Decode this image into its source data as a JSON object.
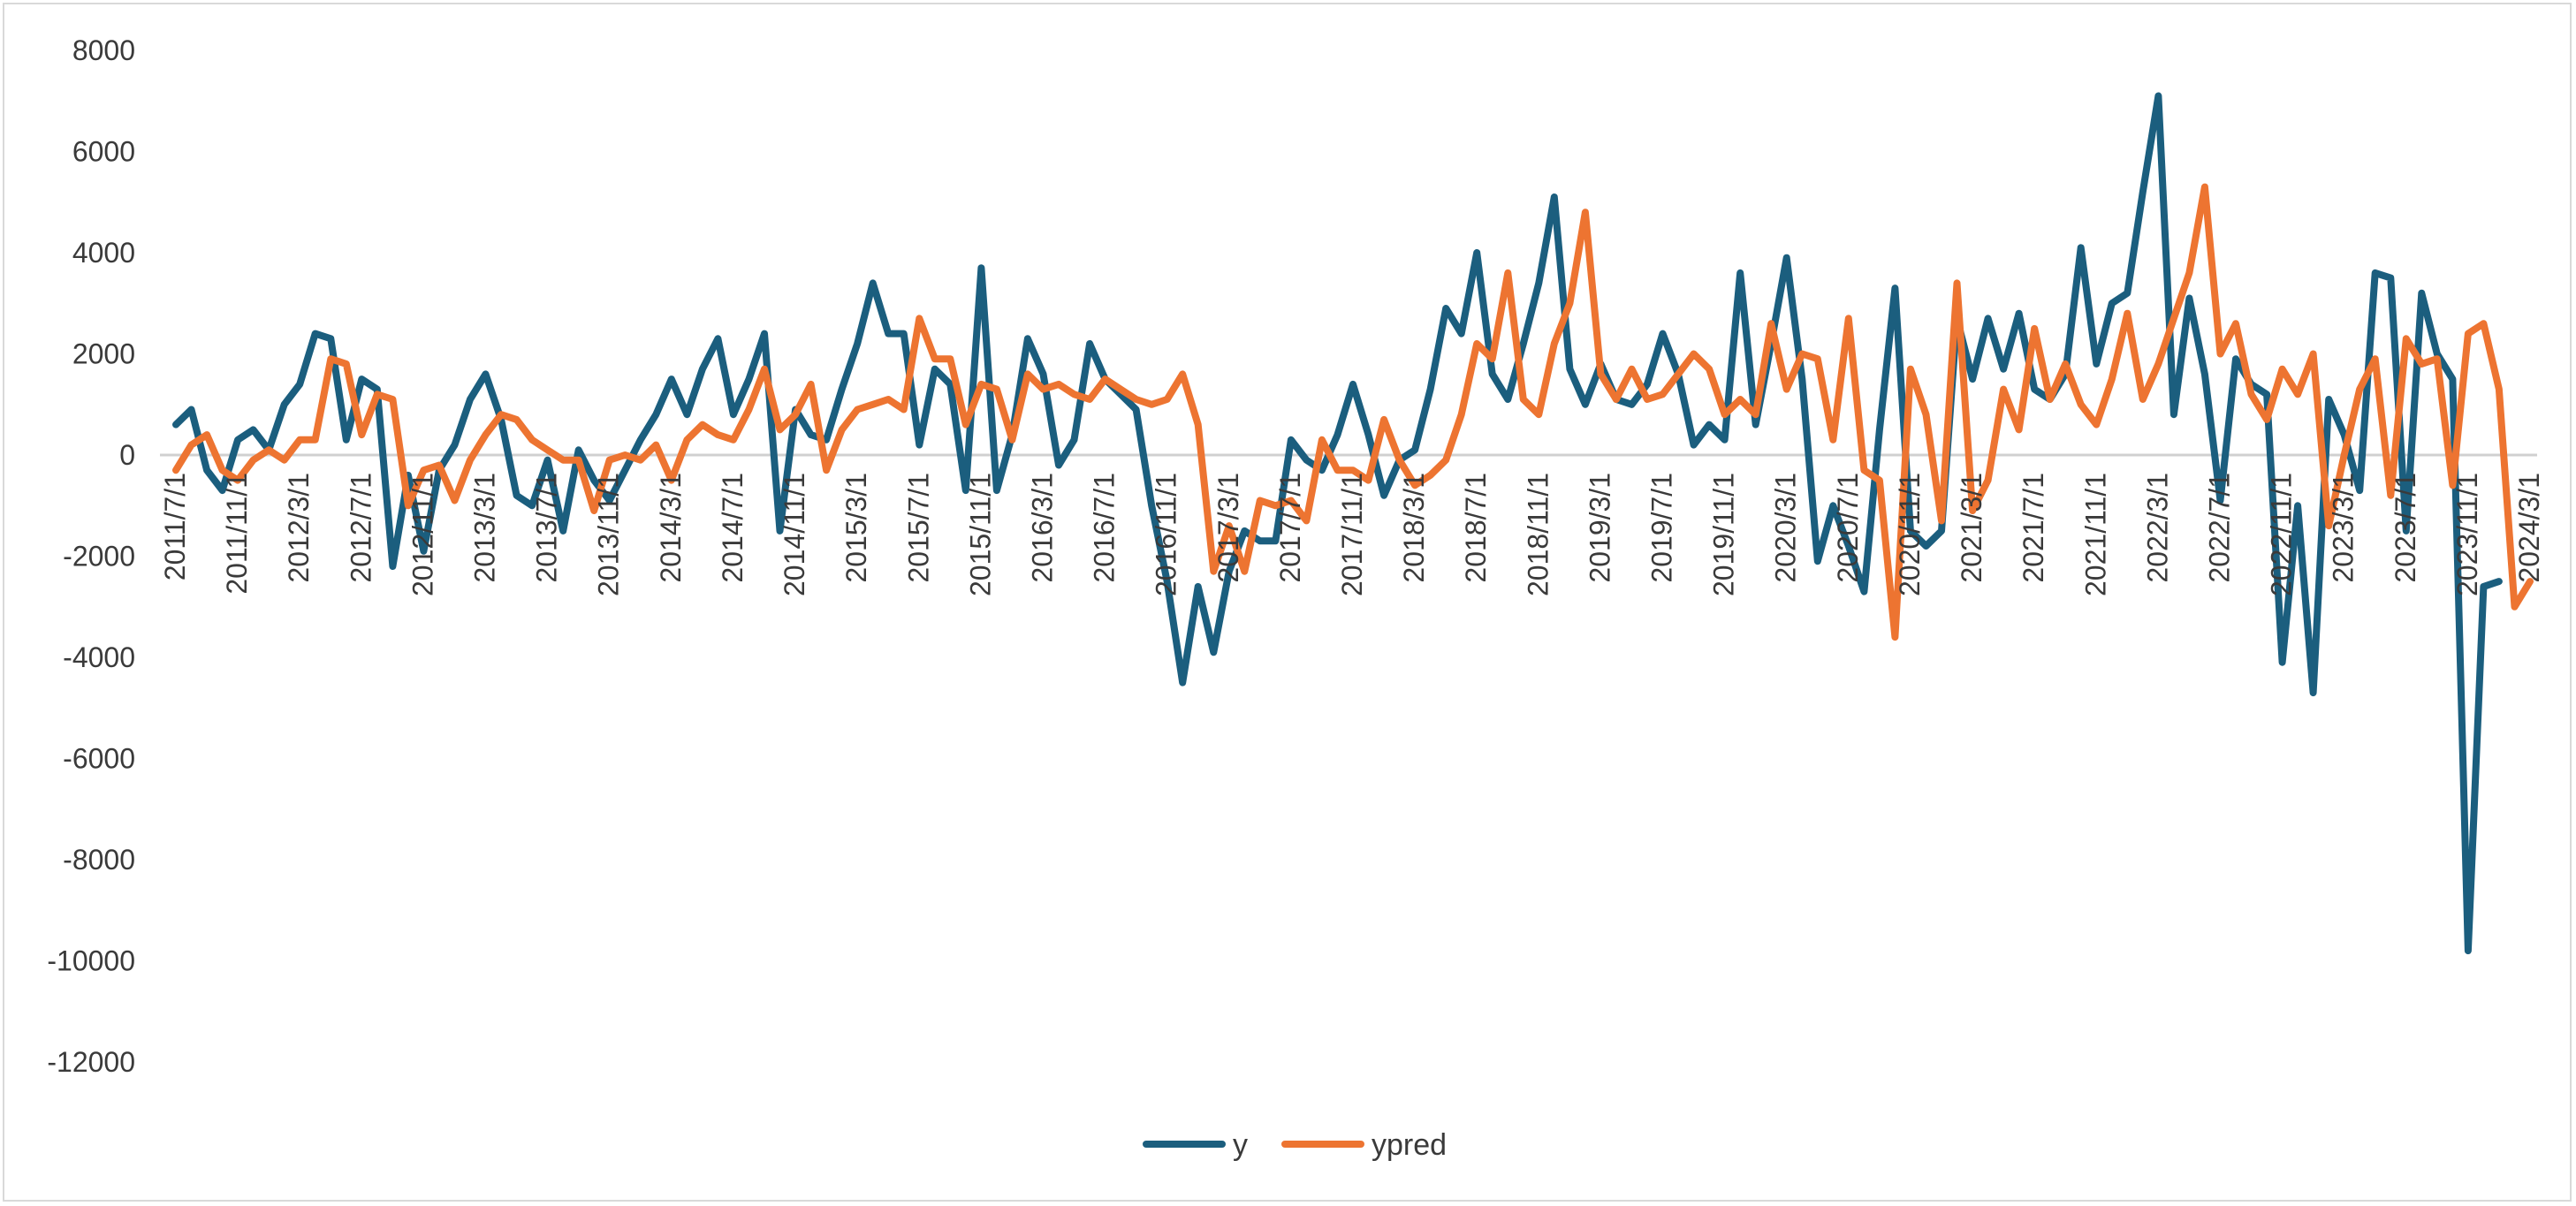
{
  "chart_data": {
    "type": "line",
    "title": "",
    "xlabel": "",
    "ylabel": "",
    "ylim": [
      -12000,
      8000
    ],
    "yticks": [
      8000,
      6000,
      4000,
      2000,
      0,
      -2000,
      -4000,
      -6000,
      -8000,
      -10000,
      -12000
    ],
    "ytick_labels": [
      "8000",
      "6000",
      "4000",
      "2000",
      "0",
      "-2000",
      "-4000",
      "-6000",
      "-8000",
      "-10000",
      "-12000"
    ],
    "x_start": "2011/7",
    "n_points": 153,
    "x_tick_labels": [
      "2011/7/1",
      "2011/11/1",
      "2012/3/1",
      "2012/7/1",
      "2012/11/1",
      "2013/3/1",
      "2013/7/1",
      "2013/11/1",
      "2014/3/1",
      "2014/7/1",
      "2014/11/1",
      "2015/3/1",
      "2015/7/1",
      "2015/11/1",
      "2016/3/1",
      "2016/7/1",
      "2016/11/1",
      "2017/3/1",
      "2017/7/1",
      "2017/11/1",
      "2018/3/1",
      "2018/7/1",
      "2018/11/1",
      "2019/3/1",
      "2019/7/1",
      "2019/11/1",
      "2020/3/1",
      "2020/7/1",
      "2020/11/1",
      "2021/3/1",
      "2021/7/1",
      "2021/11/1",
      "2022/3/1",
      "2022/7/1",
      "2022/11/1",
      "2023/3/1",
      "2023/7/1",
      "2023/11/1",
      "2024/3/1"
    ],
    "grid": false,
    "legend_position": "bottom",
    "series": [
      {
        "name": "y",
        "color": "#1b5e7e",
        "values": [
          600,
          900,
          -300,
          -700,
          300,
          500,
          100,
          1000,
          1400,
          2400,
          2300,
          300,
          1500,
          1300,
          -2200,
          -400,
          -1900,
          -300,
          200,
          1100,
          1600,
          700,
          -800,
          -1000,
          -100,
          -1500,
          100,
          -500,
          -900,
          -300,
          300,
          800,
          1500,
          800,
          1700,
          2300,
          800,
          1500,
          2400,
          -1500,
          900,
          400,
          300,
          1300,
          2200,
          3400,
          2400,
          2400,
          200,
          1700,
          1400,
          -700,
          3700,
          -700,
          400,
          2300,
          1600,
          -200,
          300,
          2200,
          1500,
          1200,
          900,
          -1000,
          -2500,
          -4500,
          -2600,
          -3900,
          -2300,
          -1500,
          -1700,
          -1700,
          300,
          -100,
          -300,
          400,
          1400,
          400,
          -800,
          -100,
          100,
          1300,
          2900,
          2400,
          4000,
          1600,
          1100,
          2200,
          3400,
          5100,
          1700,
          1000,
          1800,
          1100,
          1000,
          1400,
          2400,
          1600,
          200,
          600,
          300,
          3600,
          600,
          2200,
          3900,
          1500,
          -2100,
          -1000,
          -1800,
          -2700,
          500,
          3300,
          -1500,
          -1800,
          -1500,
          2700,
          1500,
          2700,
          1700,
          2800,
          1300,
          1100,
          1600,
          4100,
          1800,
          3000,
          3200,
          5200,
          7100,
          800,
          3100,
          1600,
          -900,
          1900,
          1400,
          1200,
          -4100,
          -1000,
          -4700,
          1100,
          400,
          -700,
          3600,
          3500,
          -1500,
          3200,
          2000,
          1500,
          -9800,
          -2600,
          -2500
        ]
      },
      {
        "name": "ypred",
        "color": "#ed7431",
        "values": [
          -300,
          200,
          400,
          -300,
          -500,
          -100,
          100,
          -100,
          300,
          300,
          1900,
          1800,
          400,
          1200,
          1100,
          -1000,
          -300,
          -200,
          -900,
          -100,
          400,
          800,
          700,
          300,
          100,
          -100,
          -100,
          -1100,
          -100,
          0,
          -100,
          200,
          -500,
          300,
          600,
          400,
          300,
          900,
          1700,
          500,
          800,
          1400,
          -300,
          500,
          900,
          1000,
          1100,
          900,
          2700,
          1900,
          1900,
          600,
          1400,
          1300,
          300,
          1600,
          1300,
          1400,
          1200,
          1100,
          1500,
          1300,
          1100,
          1000,
          1100,
          1600,
          600,
          -2300,
          -1400,
          -2300,
          -900,
          -1000,
          -900,
          -1300,
          300,
          -300,
          -300,
          -500,
          700,
          -100,
          -600,
          -400,
          -100,
          800,
          2200,
          1900,
          3600,
          1100,
          800,
          2200,
          3000,
          4800,
          1600,
          1100,
          1700,
          1100,
          1200,
          1600,
          2000,
          1700,
          800,
          1100,
          800,
          2600,
          1300,
          2000,
          1900,
          300,
          2700,
          -300,
          -500,
          -3600,
          1700,
          800,
          -1300,
          3400,
          -1100,
          -500,
          1300,
          500,
          2500,
          1100,
          1800,
          1000,
          600,
          1500,
          2800,
          1100,
          1800,
          2700,
          3600,
          5300,
          2000,
          2600,
          1200,
          700,
          1700,
          1200,
          2000,
          -1400,
          0,
          1300,
          1900,
          -800,
          2300,
          1800,
          1900,
          -600,
          2400,
          2600,
          1300,
          -3000,
          -2500
        ]
      }
    ]
  }
}
